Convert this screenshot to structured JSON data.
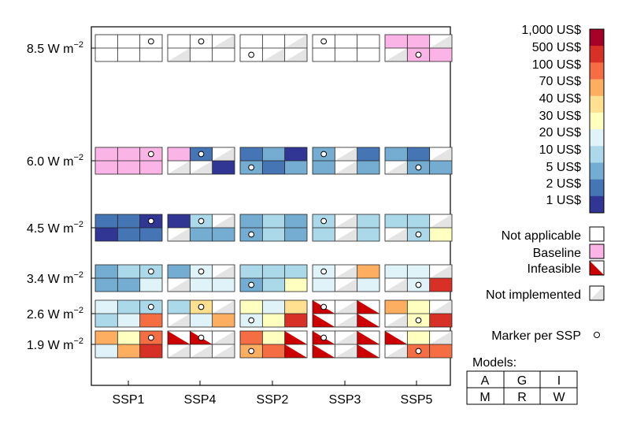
{
  "chart_data": {
    "type": "heatmap",
    "title": "",
    "xlabel": "",
    "ylabel": "",
    "ssps": [
      "SSP1",
      "SSP4",
      "SSP2",
      "SSP3",
      "SSP5"
    ],
    "forcing_levels": [
      {
        "sup": "−2",
        "label": "8.5 W m"
      },
      {
        "sup": "−2",
        "label": "6.0 W m"
      },
      {
        "sup": "−2",
        "label": "4.5 W m"
      },
      {
        "sup": "−2",
        "label": "3.4 W m"
      },
      {
        "sup": "−2",
        "label": "2.6 W m"
      },
      {
        "sup": "−2",
        "label": "1.9 W m"
      }
    ],
    "models": [
      "A",
      "G",
      "I",
      "M",
      "R",
      "W"
    ],
    "models_label": "Models:",
    "color_scale": {
      "labels": [
        "1,000 US$",
        "500 US$",
        "100 US$",
        "70 US$",
        "40 US$",
        "30 US$",
        "20 US$",
        "10 US$",
        "5 US$",
        "2 US$",
        "1 US$"
      ],
      "bins": [
        {
          "key": "gt1000",
          "color": "#a50026"
        },
        {
          "key": "500-1000",
          "color": "#d73027"
        },
        {
          "key": "100-500",
          "color": "#f46d43"
        },
        {
          "key": "70-100",
          "color": "#fdae61"
        },
        {
          "key": "40-70",
          "color": "#fee090"
        },
        {
          "key": "30-40",
          "color": "#ffffbf"
        },
        {
          "key": "20-30",
          "color": "#e0f3f8"
        },
        {
          "key": "10-20",
          "color": "#abd9e9"
        },
        {
          "key": "5-10",
          "color": "#74add1"
        },
        {
          "key": "2-5",
          "color": "#4575b4"
        },
        {
          "key": "1-2",
          "color": "#313695"
        }
      ]
    },
    "status_colors": {
      "na": "#ffffff",
      "bl": "#fab4e6",
      "inf": "#cc0000",
      "ni": "#e4e4e4"
    },
    "legend": {
      "not_applicable": "Not applicable",
      "baseline": "Baseline",
      "infeasible": "Infeasible",
      "not_implemented": "Not implemented",
      "marker": "Marker per SSP"
    },
    "cells_legend": "codes: na=not applicable, bl=baseline, inf=infeasible, ni=not implemented, c1..c11 = price bins from 1,000 US$ (c1) to 1 US$ (c11); cells ordered A,G,I,M,R,W",
    "grid": {
      "8.5 W m−2": {
        "SSP1": [
          "na",
          "na",
          "na",
          "na",
          "na",
          "na"
        ],
        "SSP4": [
          "na",
          "na",
          "ni",
          "ni",
          "na",
          "na"
        ],
        "SSP2": [
          "na",
          "na",
          "ni",
          "na",
          "ni",
          "ni"
        ],
        "SSP3": [
          "na",
          "na",
          "na",
          "na",
          "na",
          "na"
        ],
        "SSP5": [
          "bl",
          "bl",
          "ni",
          "ni",
          "bl",
          "bl"
        ]
      },
      "6.0 W m−2": {
        "SSP1": [
          "bl",
          "bl",
          "bl",
          "bl",
          "bl",
          "bl"
        ],
        "SSP4": [
          "bl",
          "c10",
          "ni",
          "ni",
          "ni",
          "c11"
        ],
        "SSP2": [
          "c10",
          "c9",
          "c11",
          "c9",
          "c10",
          "c9"
        ],
        "SSP3": [
          "c9",
          "ni",
          "c10",
          "c9",
          "ni",
          "c9"
        ],
        "SSP5": [
          "c9",
          "c10",
          "ni",
          "ni",
          "c9",
          "c9"
        ]
      },
      "4.5 W m−2": {
        "SSP1": [
          "c10",
          "c10",
          "c11",
          "c11",
          "c10",
          "c10"
        ],
        "SSP4": [
          "c11",
          "c8",
          "ni",
          "ni",
          "c9",
          "c9"
        ],
        "SSP2": [
          "c9",
          "c8",
          "c9",
          "c9",
          "c8",
          "c9"
        ],
        "SSP3": [
          "c8",
          "ni",
          "c8",
          "c8",
          "ni",
          "c8"
        ],
        "SSP5": [
          "c8",
          "c8",
          "ni",
          "ni",
          "c8",
          "c6"
        ]
      },
      "3.4 W m−2": {
        "SSP1": [
          "c9",
          "c8",
          "c8",
          "c9",
          "c9",
          "c7"
        ],
        "SSP4": [
          "c9",
          "c7",
          "ni",
          "ni",
          "c7",
          "c7"
        ],
        "SSP2": [
          "c8",
          "c8",
          "c8",
          "c9",
          "c8",
          "c6"
        ],
        "SSP3": [
          "c7",
          "ni",
          "c4",
          "c7",
          "ni",
          "c7"
        ],
        "SSP5": [
          "c7",
          "c7",
          "ni",
          "ni",
          "c7",
          "c2"
        ]
      },
      "2.6 W m−2": {
        "SSP1": [
          "c7",
          "c8",
          "c8",
          "c8",
          "c7",
          "c3"
        ],
        "SSP4": [
          "c8",
          "c5",
          "ni",
          "ni",
          "c7",
          "c4"
        ],
        "SSP2": [
          "c6",
          "c7",
          "c5",
          "c7",
          "c6",
          "c2"
        ],
        "SSP3": [
          "inf",
          "ni",
          "inf",
          "inf",
          "ni",
          "inf"
        ],
        "SSP5": [
          "c4",
          "c6",
          "ni",
          "ni",
          "c6",
          "c2"
        ]
      },
      "1.9 W m−2": {
        "SSP1": [
          "c4",
          "c6",
          "c3",
          "c7",
          "c4",
          "c2"
        ],
        "SSP4": [
          "inf",
          "inf",
          "ni",
          "ni",
          "ni",
          "ni"
        ],
        "SSP2": [
          "c3",
          "c6",
          "inf",
          "c4",
          "c3",
          "inf"
        ],
        "SSP3": [
          "inf",
          "ni",
          "inf",
          "inf",
          "ni",
          "inf"
        ],
        "SSP5": [
          "inf",
          "c6",
          "ni",
          "ni",
          "c3",
          "c3"
        ]
      }
    },
    "markers": {
      "8.5 W m−2": {
        "SSP1": "I",
        "SSP4": "G",
        "SSP2": "M",
        "SSP3": "A",
        "SSP5": "R"
      },
      "6.0 W m−2": {
        "SSP1": "I",
        "SSP4": "G",
        "SSP2": "M",
        "SSP3": "A",
        "SSP5": "R"
      },
      "4.5 W m−2": {
        "SSP1": "I",
        "SSP4": "G",
        "SSP2": "M",
        "SSP3": "A",
        "SSP5": "R"
      },
      "3.4 W m−2": {
        "SSP1": "I",
        "SSP4": "G",
        "SSP2": "M",
        "SSP3": "A",
        "SSP5": "R"
      },
      "2.6 W m−2": {
        "SSP1": "I",
        "SSP4": "G",
        "SSP2": "M",
        "SSP3": "A",
        "SSP5": "R"
      },
      "1.9 W m−2": {
        "SSP1": "I",
        "SSP4": "G",
        "SSP2": "M",
        "SSP3": "A",
        "SSP5": "R"
      }
    }
  }
}
